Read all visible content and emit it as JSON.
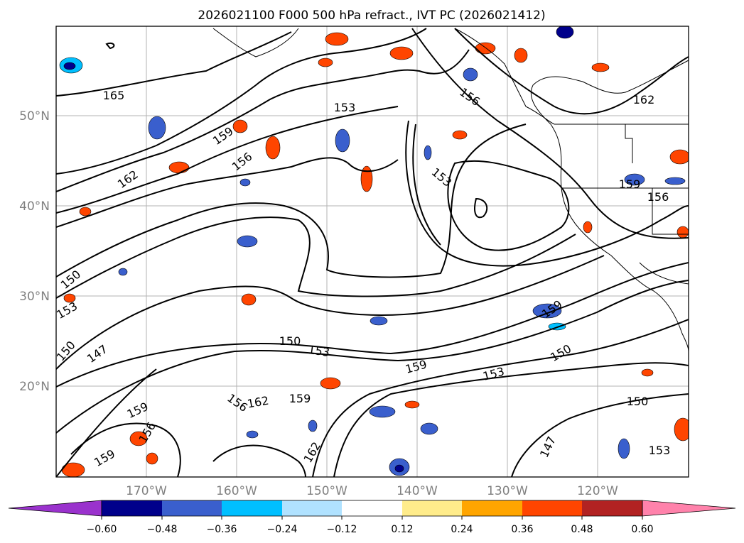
{
  "title": "2026021100 F000 500 hPa refract., IVT PC (2026021412)",
  "latitude_labels": [
    "50°N",
    "40°N",
    "30°N",
    "20°N"
  ],
  "longitude_labels": [
    "170°W",
    "160°W",
    "150°W",
    "140°W",
    "130°W",
    "120°W"
  ],
  "contour_labels": [
    "165",
    "162",
    "159",
    "156",
    "153",
    "156",
    "153",
    "162",
    "159",
    "156",
    "150",
    "153",
    "150",
    "147",
    "150",
    "153",
    "159",
    "153",
    "150",
    "159",
    "162",
    "156",
    "159",
    "150",
    "147",
    "153",
    "159",
    "156",
    "162",
    "159"
  ],
  "colorbar": {
    "tick_labels": [
      "−0.60",
      "−0.48",
      "−0.36",
      "−0.24",
      "−0.12",
      "0.12",
      "0.24",
      "0.36",
      "0.48",
      "0.60"
    ],
    "colors": [
      "#9a32cd",
      "#00008b",
      "#3a5fcd",
      "#00bfff",
      "#b0e2ff",
      "#ffffff",
      "#ffec8b",
      "#ffa500",
      "#ff4500",
      "#b22222",
      "#ff82ab"
    ]
  }
}
